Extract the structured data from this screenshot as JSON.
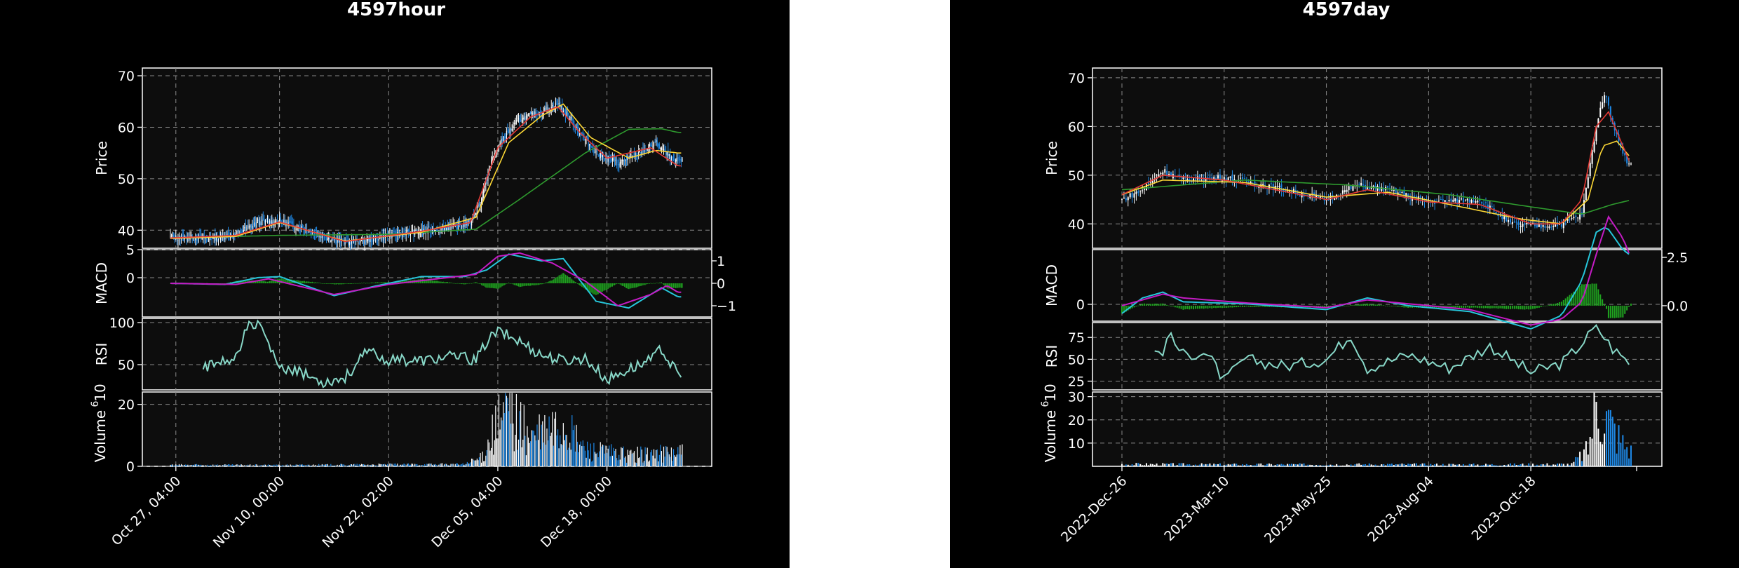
{
  "chart_data": [
    {
      "type": "candlestick",
      "title": "4597hour",
      "colors": {
        "up": "#ffffff",
        "down": "#1e88e5",
        "ma_red": "#e53935",
        "ma_yellow": "#fdd835",
        "ma_green": "#2e9a2e",
        "macd": "#26c6da",
        "signal": "#c41bc4",
        "hist": "#1fa31f",
        "rsi": "#88d8c8",
        "volume_up": "#ffffff",
        "volume_down": "#1e88e5",
        "panel_bg": "#0d0d0d"
      },
      "x_ticks": [
        "Oct 27, 04:00",
        "Nov 10, 00:00",
        "Nov 22, 02:00",
        "Dec 05, 04:00",
        "Dec 18, 00:00"
      ],
      "x_tick_index": [
        5,
        100,
        200,
        300,
        400
      ],
      "n_bars": 470,
      "panels": {
        "price": {
          "ylabel": "Price",
          "ylim": [
            36.5,
            71.5
          ],
          "yticks": [
            40,
            50,
            60,
            70
          ]
        },
        "macd": {
          "ylabel": "MACD",
          "ylim": [
            -7,
            5
          ],
          "yticks": [
            5,
            0
          ],
          "right_ylim": [
            -1.5,
            1.5
          ],
          "right_ticks": [
            "1",
            "0",
            "−1"
          ],
          "right_tick_values": [
            1,
            0,
            -1
          ]
        },
        "rsi": {
          "ylabel": "RSI",
          "ylim": [
            20,
            105
          ],
          "yticks": [
            100,
            50
          ]
        },
        "volume": {
          "ylabel": "Volume",
          "exponent": "10",
          "exponent_power": "6",
          "ylim": [
            0,
            24
          ],
          "yticks": [
            20,
            0
          ]
        }
      },
      "close_path": [
        [
          0,
          38.6
        ],
        [
          40,
          38.4
        ],
        [
          60,
          39.2
        ],
        [
          80,
          41.5
        ],
        [
          100,
          41.7
        ],
        [
          120,
          40.5
        ],
        [
          140,
          38.8
        ],
        [
          160,
          37.6
        ],
        [
          180,
          38.1
        ],
        [
          200,
          39.0
        ],
        [
          230,
          39.8
        ],
        [
          260,
          40.6
        ],
        [
          275,
          41.5
        ],
        [
          285,
          46
        ],
        [
          295,
          54
        ],
        [
          305,
          58
        ],
        [
          320,
          61.5
        ],
        [
          340,
          63
        ],
        [
          355,
          64.5
        ],
        [
          365,
          62
        ],
        [
          375,
          59
        ],
        [
          390,
          55
        ],
        [
          410,
          53
        ],
        [
          430,
          55
        ],
        [
          445,
          57
        ],
        [
          460,
          53.5
        ]
      ],
      "ma_paths": {
        "red": [
          [
            0,
            38.5
          ],
          [
            60,
            39.0
          ],
          [
            100,
            41.6
          ],
          [
            160,
            37.8
          ],
          [
            230,
            39.8
          ],
          [
            275,
            41.5
          ],
          [
            300,
            56
          ],
          [
            330,
            62
          ],
          [
            355,
            64
          ],
          [
            375,
            59
          ],
          [
            400,
            54
          ],
          [
            440,
            56
          ],
          [
            465,
            52.5
          ]
        ],
        "yellow": [
          [
            0,
            38.4
          ],
          [
            60,
            38.8
          ],
          [
            100,
            41.5
          ],
          [
            160,
            37.9
          ],
          [
            230,
            39.6
          ],
          [
            280,
            42.5
          ],
          [
            310,
            57
          ],
          [
            340,
            62.2
          ],
          [
            360,
            64.5
          ],
          [
            385,
            58
          ],
          [
            420,
            54
          ],
          [
            445,
            55.5
          ],
          [
            465,
            55
          ]
        ],
        "green": [
          [
            0,
            38.5
          ],
          [
            100,
            39
          ],
          [
            200,
            39.2
          ],
          [
            280,
            40.2
          ],
          [
            320,
            46
          ],
          [
            380,
            55
          ],
          [
            420,
            59.6
          ],
          [
            450,
            59.7
          ],
          [
            465,
            59
          ]
        ]
      },
      "macd_paths": {
        "macd": [
          [
            0,
            0
          ],
          [
            50,
            -0.05
          ],
          [
            80,
            0.25
          ],
          [
            100,
            0.3
          ],
          [
            150,
            -0.55
          ],
          [
            190,
            -0.1
          ],
          [
            230,
            0.3
          ],
          [
            270,
            0.3
          ],
          [
            290,
            0.6
          ],
          [
            310,
            1.3
          ],
          [
            340,
            1.0
          ],
          [
            360,
            1.1
          ],
          [
            390,
            -0.8
          ],
          [
            420,
            -1.1
          ],
          [
            450,
            -0.2
          ],
          [
            465,
            -0.6
          ]
        ],
        "signal": [
          [
            0,
            0
          ],
          [
            60,
            -0.05
          ],
          [
            90,
            0.2
          ],
          [
            150,
            -0.5
          ],
          [
            200,
            -0.05
          ],
          [
            280,
            0.4
          ],
          [
            300,
            1.2
          ],
          [
            320,
            1.35
          ],
          [
            350,
            0.9
          ],
          [
            380,
            0.1
          ],
          [
            410,
            -1.0
          ],
          [
            440,
            -0.5
          ],
          [
            455,
            -0.1
          ],
          [
            465,
            -0.4
          ]
        ]
      },
      "rsi_path": [
        [
          30,
          45
        ],
        [
          60,
          60
        ],
        [
          70,
          95
        ],
        [
          82,
          96
        ],
        [
          90,
          72
        ],
        [
          100,
          45
        ],
        [
          120,
          40
        ],
        [
          140,
          30
        ],
        [
          160,
          35
        ],
        [
          180,
          65
        ],
        [
          200,
          55
        ],
        [
          230,
          55
        ],
        [
          260,
          60
        ],
        [
          280,
          55
        ],
        [
          290,
          78
        ],
        [
          300,
          90
        ],
        [
          320,
          78
        ],
        [
          340,
          62
        ],
        [
          360,
          55
        ],
        [
          380,
          58
        ],
        [
          400,
          32
        ],
        [
          420,
          45
        ],
        [
          440,
          55
        ],
        [
          450,
          68
        ],
        [
          465,
          38
        ]
      ],
      "volume_path": [
        [
          0,
          0.5
        ],
        [
          100,
          0.4
        ],
        [
          200,
          0.6
        ],
        [
          270,
          0.7
        ],
        [
          285,
          3
        ],
        [
          295,
          12
        ],
        [
          310,
          20
        ],
        [
          330,
          10
        ],
        [
          360,
          14
        ],
        [
          380,
          6
        ],
        [
          420,
          4
        ],
        [
          465,
          5
        ]
      ]
    },
    {
      "type": "candlestick",
      "title": "4597day",
      "colors": {
        "up": "#ffffff",
        "down": "#1e88e5",
        "ma_red": "#e53935",
        "ma_yellow": "#fdd835",
        "ma_green": "#2e9a2e",
        "macd": "#26c6da",
        "signal": "#c41bc4",
        "hist": "#1fa31f",
        "rsi": "#88d8c8",
        "volume_up": "#ffffff",
        "volume_down": "#1e88e5",
        "panel_bg": "#0d0d0d"
      },
      "x_ticks": [
        "2022-Dec-26",
        "2023-Mar-10",
        "2023-May-25",
        "2023-Aug-04",
        "2023-Oct-18"
      ],
      "x_tick_index": [
        0,
        50,
        100,
        150,
        200
      ],
      "n_bars": 250,
      "panels": {
        "price": {
          "ylabel": "Price",
          "ylim": [
            35,
            72
          ],
          "yticks": [
            40,
            50,
            60,
            70
          ]
        },
        "macd": {
          "ylabel": "MACD",
          "ylim": [
            -2,
            6.5
          ],
          "yticks": [
            0
          ],
          "right_ylim": [
            -0.8,
            2.9
          ],
          "right_ticks": [
            "2.5",
            "0.0"
          ],
          "right_tick_values": [
            2.5,
            0
          ]
        },
        "rsi": {
          "ylabel": "RSI",
          "ylim": [
            15,
            92
          ],
          "yticks": [
            75,
            50,
            25
          ]
        },
        "volume": {
          "ylabel": "Volume",
          "exponent": "10",
          "exponent_power": "6",
          "ylim": [
            0,
            32
          ],
          "yticks": [
            30,
            20,
            10
          ]
        }
      },
      "close_path": [
        [
          0,
          45
        ],
        [
          10,
          47
        ],
        [
          20,
          51
        ],
        [
          30,
          49
        ],
        [
          50,
          49.5
        ],
        [
          70,
          48
        ],
        [
          100,
          45
        ],
        [
          115,
          48
        ],
        [
          130,
          47
        ],
        [
          150,
          44.5
        ],
        [
          175,
          45
        ],
        [
          190,
          40
        ],
        [
          205,
          39.5
        ],
        [
          215,
          40
        ],
        [
          225,
          42
        ],
        [
          232,
          60
        ],
        [
          236,
          67
        ],
        [
          242,
          58
        ],
        [
          248,
          52
        ]
      ],
      "ma_paths": {
        "red": [
          [
            0,
            46
          ],
          [
            20,
            50
          ],
          [
            50,
            49
          ],
          [
            100,
            45
          ],
          [
            120,
            47
          ],
          [
            150,
            44.5
          ],
          [
            175,
            44
          ],
          [
            200,
            40
          ],
          [
            215,
            40
          ],
          [
            225,
            45
          ],
          [
            232,
            60
          ],
          [
            238,
            63
          ],
          [
            245,
            56
          ],
          [
            250,
            51
          ]
        ],
        "yellow": [
          [
            0,
            46
          ],
          [
            20,
            49
          ],
          [
            60,
            48.5
          ],
          [
            100,
            45.5
          ],
          [
            130,
            46.5
          ],
          [
            160,
            44
          ],
          [
            195,
            41
          ],
          [
            215,
            40
          ],
          [
            228,
            45
          ],
          [
            235,
            56
          ],
          [
            242,
            57
          ],
          [
            250,
            53
          ]
        ],
        "green": [
          [
            0,
            47
          ],
          [
            60,
            49
          ],
          [
            110,
            48
          ],
          [
            160,
            46
          ],
          [
            200,
            43.5
          ],
          [
            225,
            42
          ],
          [
            240,
            44
          ],
          [
            250,
            45
          ]
        ]
      },
      "macd_paths": {
        "macd": [
          [
            0,
            -0.4
          ],
          [
            10,
            0.4
          ],
          [
            20,
            0.7
          ],
          [
            30,
            0.2
          ],
          [
            60,
            0.1
          ],
          [
            100,
            -0.2
          ],
          [
            120,
            0.4
          ],
          [
            140,
            0
          ],
          [
            170,
            -0.3
          ],
          [
            200,
            -1.2
          ],
          [
            215,
            -0.5
          ],
          [
            225,
            1.3
          ],
          [
            232,
            3.8
          ],
          [
            237,
            4.1
          ],
          [
            245,
            2.9
          ],
          [
            250,
            2.5
          ]
        ],
        "signal": [
          [
            0,
            0
          ],
          [
            10,
            0.3
          ],
          [
            20,
            0.6
          ],
          [
            30,
            0.4
          ],
          [
            60,
            0.15
          ],
          [
            100,
            -0.1
          ],
          [
            120,
            0.3
          ],
          [
            140,
            0.1
          ],
          [
            170,
            -0.2
          ],
          [
            200,
            -1.0
          ],
          [
            215,
            -0.7
          ],
          [
            225,
            0.2
          ],
          [
            233,
            3.0
          ],
          [
            238,
            4.6
          ],
          [
            245,
            3.5
          ],
          [
            250,
            2.2
          ]
        ]
      },
      "rsi_path": [
        [
          15,
          60
        ],
        [
          20,
          55
        ],
        [
          22,
          80
        ],
        [
          30,
          55
        ],
        [
          40,
          58
        ],
        [
          45,
          45
        ],
        [
          50,
          25
        ],
        [
          60,
          50
        ],
        [
          80,
          42
        ],
        [
          100,
          50
        ],
        [
          112,
          78
        ],
        [
          120,
          40
        ],
        [
          140,
          55
        ],
        [
          160,
          40
        ],
        [
          180,
          65
        ],
        [
          200,
          35
        ],
        [
          215,
          45
        ],
        [
          225,
          68
        ],
        [
          232,
          88
        ],
        [
          240,
          62
        ],
        [
          250,
          43
        ]
      ],
      "volume_path": [
        [
          0,
          1
        ],
        [
          60,
          0.8
        ],
        [
          120,
          0.9
        ],
        [
          180,
          0.8
        ],
        [
          220,
          1
        ],
        [
          228,
          8
        ],
        [
          232,
          30
        ],
        [
          238,
          22
        ],
        [
          244,
          12
        ],
        [
          250,
          6
        ]
      ]
    }
  ]
}
